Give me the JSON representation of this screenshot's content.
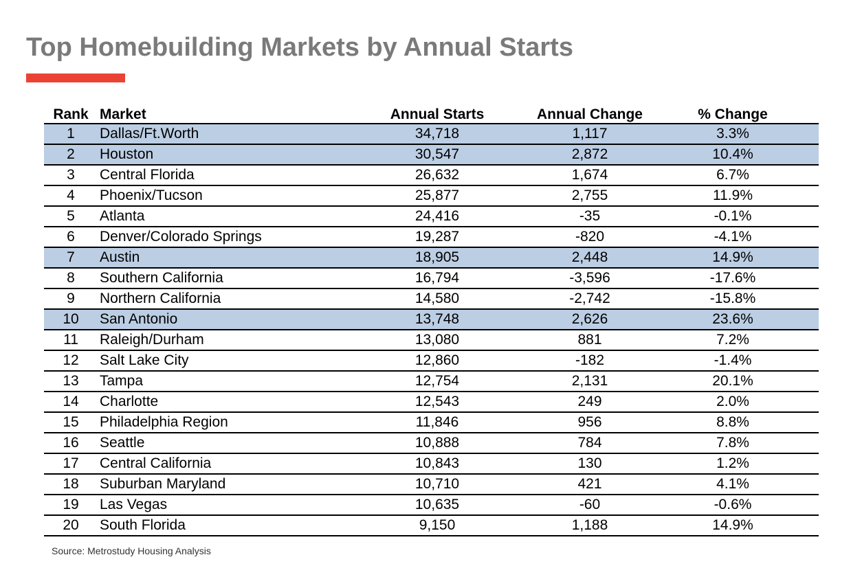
{
  "title": "Top Homebuilding Markets by Annual Starts",
  "accent_color": "#ea4335",
  "highlight_color": "#bccee4",
  "table": {
    "columns": [
      "Rank",
      "Market",
      "Annual Starts",
      "Annual Change",
      "% Change"
    ],
    "rows": [
      {
        "rank": "1",
        "market": "Dallas/Ft.Worth",
        "starts": "34,718",
        "change": "1,117",
        "pct": "3.3%",
        "highlighted": true
      },
      {
        "rank": "2",
        "market": "Houston",
        "starts": "30,547",
        "change": "2,872",
        "pct": "10.4%",
        "highlighted": true
      },
      {
        "rank": "3",
        "market": "Central Florida",
        "starts": "26,632",
        "change": "1,674",
        "pct": "6.7%",
        "highlighted": false
      },
      {
        "rank": "4",
        "market": "Phoenix/Tucson",
        "starts": "25,877",
        "change": "2,755",
        "pct": "11.9%",
        "highlighted": false
      },
      {
        "rank": "5",
        "market": "Atlanta",
        "starts": "24,416",
        "change": "-35",
        "pct": "-0.1%",
        "highlighted": false
      },
      {
        "rank": "6",
        "market": "Denver/Colorado Springs",
        "starts": "19,287",
        "change": "-820",
        "pct": "-4.1%",
        "highlighted": false
      },
      {
        "rank": "7",
        "market": "Austin",
        "starts": "18,905",
        "change": "2,448",
        "pct": "14.9%",
        "highlighted": true
      },
      {
        "rank": "8",
        "market": "Southern California",
        "starts": "16,794",
        "change": "-3,596",
        "pct": "-17.6%",
        "highlighted": false
      },
      {
        "rank": "9",
        "market": "Northern California",
        "starts": "14,580",
        "change": "-2,742",
        "pct": "-15.8%",
        "highlighted": false
      },
      {
        "rank": "10",
        "market": "San Antonio",
        "starts": "13,748",
        "change": "2,626",
        "pct": "23.6%",
        "highlighted": true
      },
      {
        "rank": "11",
        "market": "Raleigh/Durham",
        "starts": "13,080",
        "change": "881",
        "pct": "7.2%",
        "highlighted": false
      },
      {
        "rank": "12",
        "market": "Salt Lake City",
        "starts": "12,860",
        "change": "-182",
        "pct": "-1.4%",
        "highlighted": false
      },
      {
        "rank": "13",
        "market": "Tampa",
        "starts": "12,754",
        "change": "2,131",
        "pct": "20.1%",
        "highlighted": false
      },
      {
        "rank": "14",
        "market": "Charlotte",
        "starts": "12,543",
        "change": "249",
        "pct": "2.0%",
        "highlighted": false
      },
      {
        "rank": "15",
        "market": "Philadelphia Region",
        "starts": "11,846",
        "change": "956",
        "pct": "8.8%",
        "highlighted": false
      },
      {
        "rank": "16",
        "market": "Seattle",
        "starts": "10,888",
        "change": "784",
        "pct": "7.8%",
        "highlighted": false
      },
      {
        "rank": "17",
        "market": "Central California",
        "starts": "10,843",
        "change": "130",
        "pct": "1.2%",
        "highlighted": false
      },
      {
        "rank": "18",
        "market": "Suburban Maryland",
        "starts": "10,710",
        "change": "421",
        "pct": "4.1%",
        "highlighted": false
      },
      {
        "rank": "19",
        "market": "Las Vegas",
        "starts": "10,635",
        "change": "-60",
        "pct": "-0.6%",
        "highlighted": false
      },
      {
        "rank": "20",
        "market": "South Florida",
        "starts": "9,150",
        "change": "1,188",
        "pct": "14.9%",
        "highlighted": false
      }
    ]
  },
  "source": "Source: Metrostudy Housing Analysis"
}
